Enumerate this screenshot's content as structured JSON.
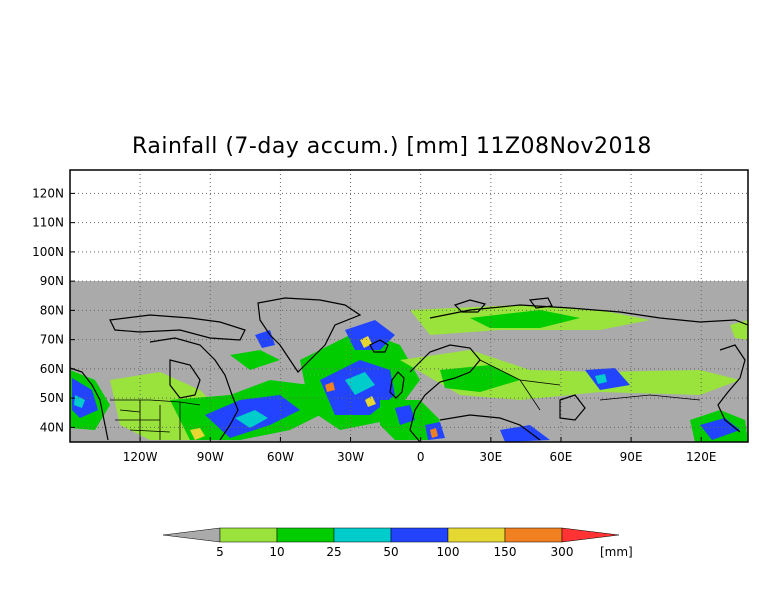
{
  "title": "Rainfall (7-day accum.) [mm] 11Z08Nov2018",
  "map": {
    "lon_range": [
      -150,
      140
    ],
    "lat_range": [
      35,
      128
    ],
    "data_lat_max": 90,
    "lat_ticks": [
      "40N",
      "50N",
      "60N",
      "70N",
      "80N",
      "90N",
      "100N",
      "110N",
      "120N"
    ],
    "lon_ticks": [
      "120W",
      "90W",
      "60W",
      "30W",
      "0",
      "30E",
      "60E",
      "90E",
      "120E"
    ],
    "background_color": "#aaaaaa"
  },
  "legend": {
    "unit": "[mm]",
    "labels": [
      "5",
      "10",
      "25",
      "50",
      "100",
      "150",
      "300"
    ],
    "colors": [
      "#aaaaaa",
      "#9ae33c",
      "#00cc00",
      "#00cccc",
      "#2244ff",
      "#e6d832",
      "#f08020",
      "#ff3333"
    ]
  }
}
